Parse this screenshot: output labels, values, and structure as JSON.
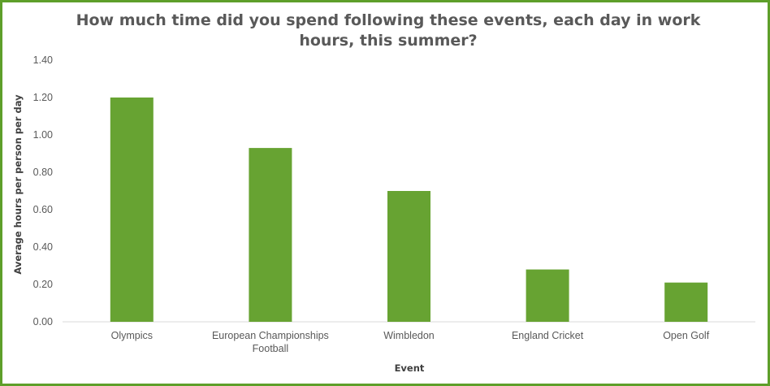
{
  "chart_data": {
    "type": "bar",
    "title": "How much time did you spend following these events, each day in work hours, this summer?",
    "xlabel": "Event",
    "ylabel": "Average hours per person per day",
    "categories": [
      [
        "Olympics"
      ],
      [
        "European Championships",
        "Football"
      ],
      [
        "Wimbledon"
      ],
      [
        "England Cricket"
      ],
      [
        "Open Golf"
      ]
    ],
    "values": [
      1.2,
      0.93,
      0.7,
      0.28,
      0.21
    ],
    "yticks": [
      "0.00",
      "0.20",
      "0.40",
      "0.60",
      "0.80",
      "1.00",
      "1.20",
      "1.40"
    ],
    "ylim": [
      0,
      1.4
    ],
    "grid": false,
    "legend": "none",
    "bar_color": "#67a332",
    "axis_color": "#d9d9d9"
  }
}
